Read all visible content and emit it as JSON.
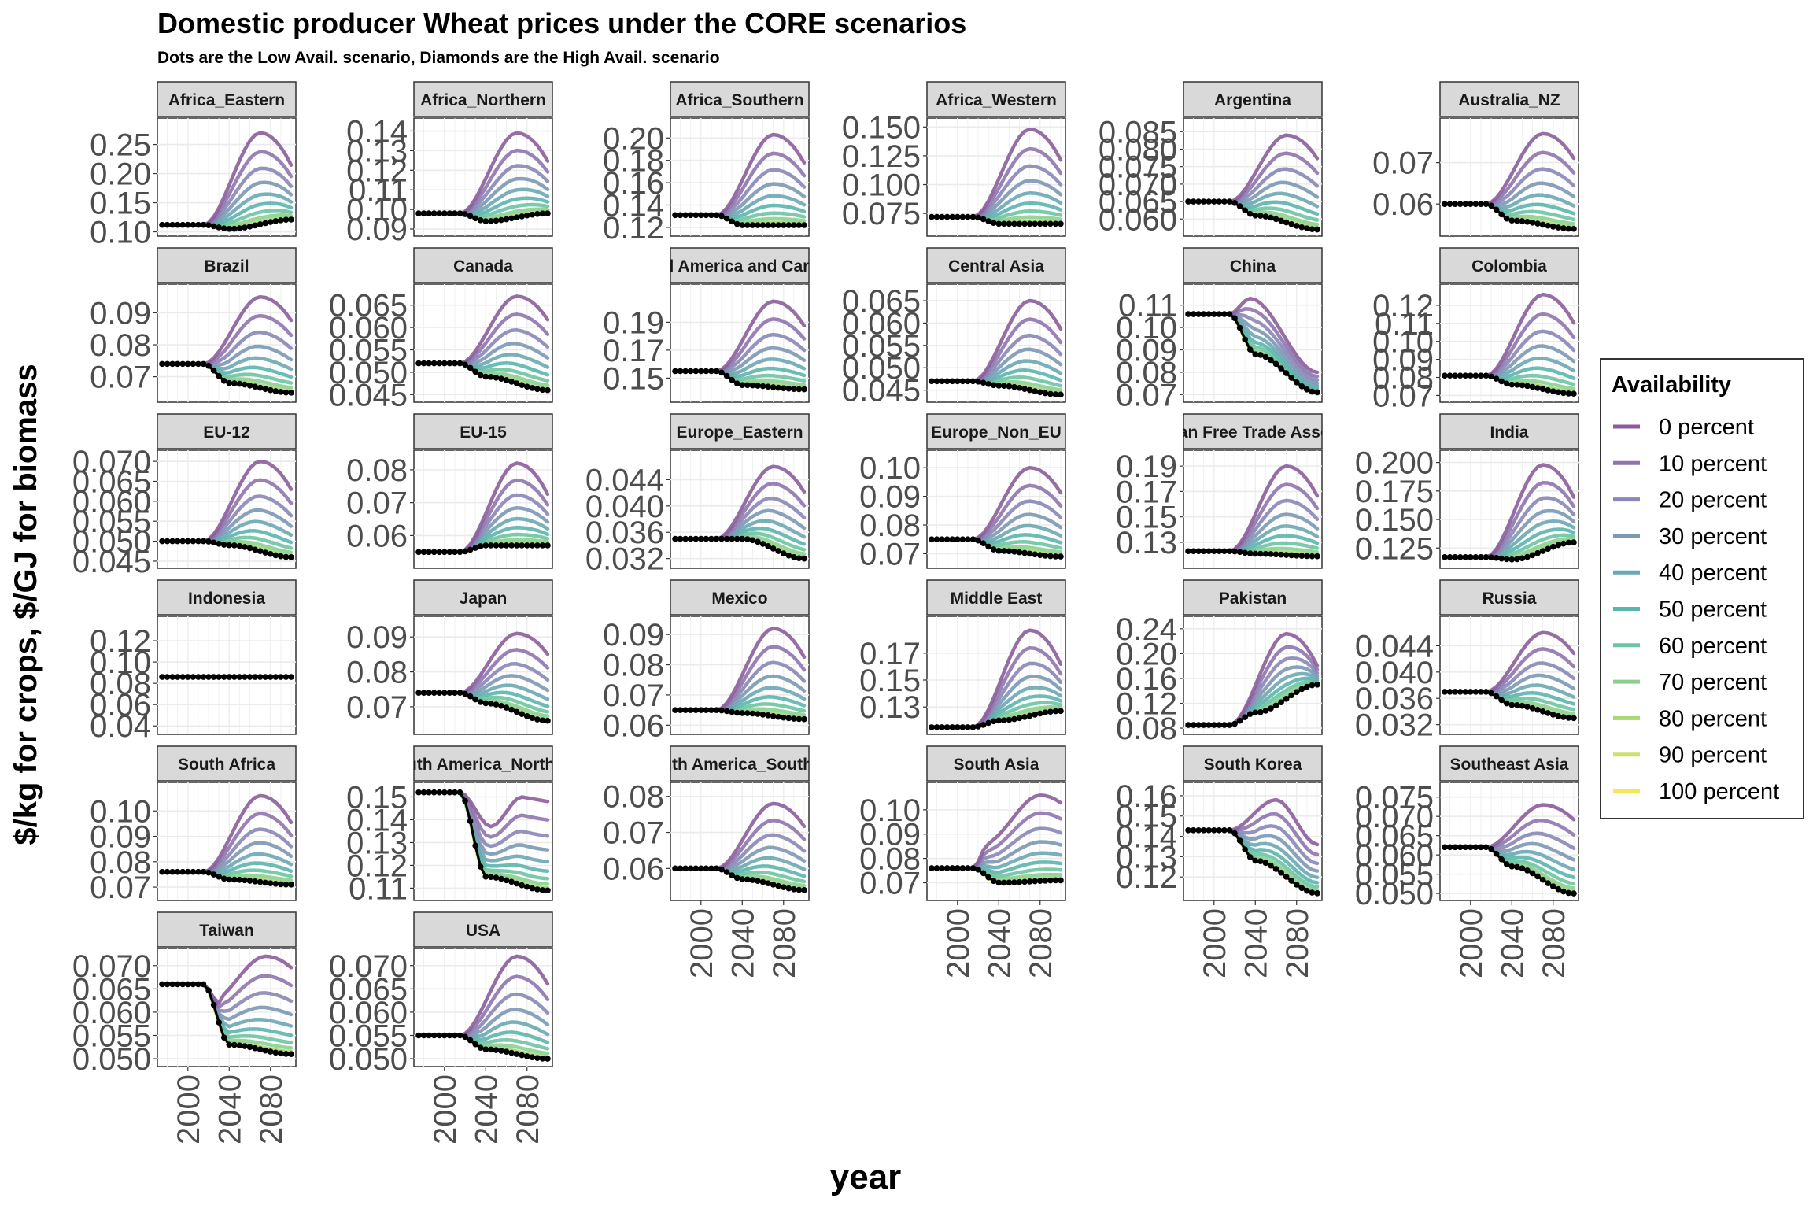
{
  "chart_data": {
    "type": "line",
    "title": "Domestic producer Wheat prices under the CORE scenarios",
    "subtitle": "Dots are the Low Avail. scenario, Diamonds are the High Avail. scenario",
    "xlabel": "year",
    "ylabel": "$/kg for crops, $/GJ for biomass",
    "x_ticks": [
      2000,
      2040,
      2080
    ],
    "xlim": [
      1975,
      2100
    ],
    "grid": true,
    "legend": {
      "title": "Availability",
      "placement": "right",
      "entries": [
        "0 percent",
        "10 percent",
        "20 percent",
        "30 percent",
        "40 percent",
        "50 percent",
        "60 percent",
        "70 percent",
        "80 percent",
        "90 percent",
        "100 percent"
      ],
      "colors": [
        "#8B5E9B",
        "#8D74AE",
        "#8887B6",
        "#7C98B4",
        "#6AA7B2",
        "#5BB5AD",
        "#6DC4A3",
        "#8BD090",
        "#A8D873",
        "#CEE06A",
        "#F5E758"
      ]
    },
    "panels": [
      {
        "name": "Africa_Eastern",
        "y_ticks": [
          "0.10",
          "0.15",
          "0.20",
          "0.25"
        ],
        "ylim": [
          0.098,
          0.29
        ],
        "base": 0.112,
        "flat_end": 2015,
        "low": [
          0.105,
          0.121
        ],
        "high": 0.27,
        "shape": "rise"
      },
      {
        "name": "Africa_Northern",
        "y_ticks": [
          "0.09",
          "0.10",
          "0.11",
          "0.12",
          "0.13",
          "0.14"
        ],
        "ylim": [
          0.088,
          0.145
        ],
        "base": 0.098,
        "flat_end": 2015,
        "low": [
          0.094,
          0.098
        ],
        "high": 0.139,
        "shape": "rise"
      },
      {
        "name": "Africa_Southern",
        "y_ticks": [
          "0.12",
          "0.14",
          "0.16",
          "0.18",
          "0.20"
        ],
        "ylim": [
          0.115,
          0.215
        ],
        "base": 0.131,
        "flat_end": 2015,
        "low": [
          0.122,
          0.122
        ],
        "high": 0.203,
        "shape": "rise"
      },
      {
        "name": "Africa_Western",
        "y_ticks": [
          "0.075",
          "0.100",
          "0.125",
          "0.150"
        ],
        "ylim": [
          0.058,
          0.155
        ],
        "base": 0.072,
        "flat_end": 2015,
        "low": [
          0.066,
          0.066
        ],
        "high": 0.148,
        "shape": "rise"
      },
      {
        "name": "Argentina",
        "y_ticks": [
          "0.060",
          "0.065",
          "0.070",
          "0.075",
          "0.080",
          "0.085"
        ],
        "ylim": [
          0.056,
          0.088
        ],
        "base": 0.065,
        "flat_end": 2015,
        "low": [
          0.061,
          0.057
        ],
        "high": 0.084,
        "shape": "rise"
      },
      {
        "name": "Australia_NZ",
        "y_ticks": [
          "0.06",
          "0.07"
        ],
        "ylim": [
          0.053,
          0.08
        ],
        "base": 0.06,
        "flat_end": 2015,
        "low": [
          0.056,
          0.054
        ],
        "high": 0.077,
        "shape": "rise"
      },
      {
        "name": "Brazil",
        "y_ticks": [
          "0.07",
          "0.08",
          "0.09"
        ],
        "ylim": [
          0.063,
          0.098
        ],
        "base": 0.074,
        "flat_end": 2015,
        "low": [
          0.068,
          0.065
        ],
        "high": 0.095,
        "shape": "rise"
      },
      {
        "name": "Canada",
        "y_ticks": [
          "0.045",
          "0.050",
          "0.055",
          "0.060",
          "0.065"
        ],
        "ylim": [
          0.044,
          0.069
        ],
        "base": 0.052,
        "flat_end": 2015,
        "low": [
          0.049,
          0.046
        ],
        "high": 0.067,
        "shape": "rise"
      },
      {
        "name": "Central America and Caribbean",
        "y_ticks": [
          "0.15",
          "0.17",
          "0.19"
        ],
        "ylim": [
          0.135,
          0.215
        ],
        "base": 0.155,
        "flat_end": 2015,
        "low": [
          0.145,
          0.142
        ],
        "high": 0.205,
        "shape": "rise"
      },
      {
        "name": "Central Asia",
        "y_ticks": [
          "0.045",
          "0.050",
          "0.055",
          "0.060",
          "0.065"
        ],
        "ylim": [
          0.043,
          0.068
        ],
        "base": 0.047,
        "flat_end": 2015,
        "low": [
          0.046,
          0.044
        ],
        "high": 0.065,
        "shape": "rise"
      },
      {
        "name": "China",
        "y_ticks": [
          "0.07",
          "0.08",
          "0.09",
          "0.10",
          "0.11"
        ],
        "ylim": [
          0.068,
          0.118
        ],
        "base": 0.106,
        "flat_end": 2015,
        "low": [
          0.088,
          0.071
        ],
        "high": 0.113,
        "shape": "china"
      },
      {
        "name": "Colombia",
        "y_ticks": [
          "0.07",
          "0.08",
          "0.09",
          "0.10",
          "0.11",
          "0.12"
        ],
        "ylim": [
          0.068,
          0.13
        ],
        "base": 0.081,
        "flat_end": 2015,
        "low": [
          0.076,
          0.071
        ],
        "high": 0.126,
        "shape": "rise"
      },
      {
        "name": "EU-12",
        "y_ticks": [
          "0.045",
          "0.050",
          "0.055",
          "0.060",
          "0.065",
          "0.070"
        ],
        "ylim": [
          0.044,
          0.072
        ],
        "base": 0.05,
        "flat_end": 2015,
        "low": [
          0.049,
          0.046
        ],
        "high": 0.07,
        "shape": "rise"
      },
      {
        "name": "EU-15",
        "y_ticks": [
          "0.06",
          "0.07",
          "0.08"
        ],
        "ylim": [
          0.051,
          0.085
        ],
        "base": 0.055,
        "flat_end": 2015,
        "low": [
          0.057,
          0.057
        ],
        "high": 0.082,
        "shape": "rise"
      },
      {
        "name": "Europe_Eastern",
        "y_ticks": [
          "0.032",
          "0.036",
          "0.040",
          "0.044"
        ],
        "ylim": [
          0.031,
          0.048
        ],
        "base": 0.035,
        "flat_end": 2015,
        "low": [
          0.035,
          0.032
        ],
        "high": 0.046,
        "shape": "rise"
      },
      {
        "name": "Europe_Non_EU",
        "y_ticks": [
          "0.07",
          "0.08",
          "0.09",
          "0.10"
        ],
        "ylim": [
          0.066,
          0.105
        ],
        "base": 0.075,
        "flat_end": 2015,
        "low": [
          0.071,
          0.069
        ],
        "high": 0.1,
        "shape": "rise"
      },
      {
        "name": "European Free Trade Association",
        "y_ticks": [
          "0.13",
          "0.15",
          "0.17",
          "0.19"
        ],
        "ylim": [
          0.112,
          0.2
        ],
        "base": 0.123,
        "flat_end": 2015,
        "low": [
          0.121,
          0.119
        ],
        "high": 0.19,
        "shape": "rise"
      },
      {
        "name": "India",
        "y_ticks": [
          "0.125",
          "0.150",
          "0.175",
          "0.200"
        ],
        "ylim": [
          0.11,
          0.208
        ],
        "base": 0.117,
        "flat_end": 2015,
        "low": [
          0.115,
          0.13
        ],
        "high": 0.198,
        "shape": "rise"
      },
      {
        "name": "Indonesia",
        "y_ticks": [
          "0.04",
          "0.06",
          "0.08",
          "0.10",
          "0.12"
        ],
        "ylim": [
          0.035,
          0.14
        ],
        "base": 0.086,
        "flat_end": 2100,
        "low": [
          0.086,
          0.086
        ],
        "high": 0.086,
        "shape": "flat"
      },
      {
        "name": "Japan",
        "y_ticks": [
          "0.07",
          "0.08",
          "0.09"
        ],
        "ylim": [
          0.063,
          0.095
        ],
        "base": 0.074,
        "flat_end": 2015,
        "low": [
          0.071,
          0.066
        ],
        "high": 0.091,
        "shape": "rise"
      },
      {
        "name": "Mexico",
        "y_ticks": [
          "0.06",
          "0.07",
          "0.08",
          "0.09"
        ],
        "ylim": [
          0.058,
          0.095
        ],
        "base": 0.065,
        "flat_end": 2015,
        "low": [
          0.064,
          0.062
        ],
        "high": 0.092,
        "shape": "rise"
      },
      {
        "name": "Middle East",
        "y_ticks": [
          "0.13",
          "0.15",
          "0.17"
        ],
        "ylim": [
          0.112,
          0.195
        ],
        "base": 0.115,
        "flat_end": 2015,
        "low": [
          0.12,
          0.127
        ],
        "high": 0.187,
        "shape": "rise"
      },
      {
        "name": "Pakistan",
        "y_ticks": [
          "0.08",
          "0.12",
          "0.16",
          "0.20",
          "0.24"
        ],
        "ylim": [
          0.075,
          0.255
        ],
        "base": 0.085,
        "flat_end": 2015,
        "low": [
          0.105,
          0.15
        ],
        "high": 0.232,
        "shape": "pak"
      },
      {
        "name": "Russia",
        "y_ticks": [
          "0.032",
          "0.036",
          "0.040",
          "0.044"
        ],
        "ylim": [
          0.031,
          0.048
        ],
        "base": 0.037,
        "flat_end": 2015,
        "low": [
          0.035,
          0.033
        ],
        "high": 0.046,
        "shape": "rise"
      },
      {
        "name": "South Africa",
        "y_ticks": [
          "0.07",
          "0.08",
          "0.09",
          "0.10"
        ],
        "ylim": [
          0.066,
          0.11
        ],
        "base": 0.076,
        "flat_end": 2015,
        "low": [
          0.073,
          0.071
        ],
        "high": 0.106,
        "shape": "rise"
      },
      {
        "name": "South America_Northern",
        "y_ticks": [
          "0.11",
          "0.12",
          "0.13",
          "0.14",
          "0.15"
        ],
        "ylim": [
          0.106,
          0.155
        ],
        "base": 0.152,
        "flat_end": 2015,
        "low": [
          0.115,
          0.109
        ],
        "high": 0.148,
        "shape": "sanorth"
      },
      {
        "name": "South America_Southern",
        "y_ticks": [
          "0.06",
          "0.07",
          "0.08"
        ],
        "ylim": [
          0.052,
          0.083
        ],
        "base": 0.06,
        "flat_end": 2015,
        "low": [
          0.057,
          0.054
        ],
        "high": 0.078,
        "shape": "rise"
      },
      {
        "name": "South Asia",
        "y_ticks": [
          "0.07",
          "0.08",
          "0.09",
          "0.10"
        ],
        "ylim": [
          0.064,
          0.11
        ],
        "base": 0.076,
        "flat_end": 2015,
        "low": [
          0.07,
          0.071
        ],
        "high": 0.106,
        "shape": "southasia"
      },
      {
        "name": "South Korea",
        "y_ticks": [
          "0.12",
          "0.13",
          "0.14",
          "0.15",
          "0.16"
        ],
        "ylim": [
          0.11,
          0.165
        ],
        "base": 0.143,
        "flat_end": 2015,
        "low": [
          0.128,
          0.112
        ],
        "high": 0.158,
        "shape": "korea"
      },
      {
        "name": "Southeast Asia",
        "y_ticks": [
          "0.050",
          "0.055",
          "0.060",
          "0.065",
          "0.070",
          "0.075"
        ],
        "ylim": [
          0.049,
          0.078
        ],
        "base": 0.062,
        "flat_end": 2015,
        "low": [
          0.057,
          0.05
        ],
        "high": 0.073,
        "shape": "rise"
      },
      {
        "name": "Taiwan",
        "y_ticks": [
          "0.050",
          "0.055",
          "0.060",
          "0.065",
          "0.070"
        ],
        "ylim": [
          0.049,
          0.073
        ],
        "base": 0.066,
        "flat_end": 2015,
        "low": [
          0.053,
          0.051
        ],
        "high": 0.072,
        "shape": "taiwan"
      },
      {
        "name": "USA",
        "y_ticks": [
          "0.050",
          "0.055",
          "0.060",
          "0.065",
          "0.070"
        ],
        "ylim": [
          0.049,
          0.073
        ],
        "base": 0.055,
        "flat_end": 2015,
        "low": [
          0.052,
          0.05
        ],
        "high": 0.072,
        "shape": "rise"
      }
    ]
  }
}
